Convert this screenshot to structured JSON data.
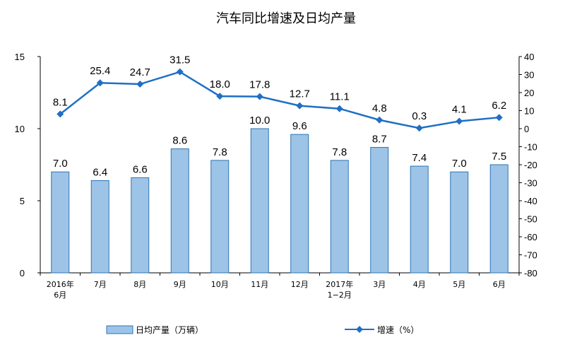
{
  "chart_data": {
    "type": "bar",
    "title": "汽车同比增速及日均产量",
    "categories": [
      [
        "2016年",
        "6月"
      ],
      [
        "7月"
      ],
      [
        "8月"
      ],
      [
        "9月"
      ],
      [
        "10月"
      ],
      [
        "11月"
      ],
      [
        "12月"
      ],
      [
        "2017年",
        "1−2月"
      ],
      [
        "3月"
      ],
      [
        "4月"
      ],
      [
        "5月"
      ],
      [
        "6月"
      ]
    ],
    "series": [
      {
        "name": "日均产量（万辆）",
        "type": "bar",
        "axis": "left",
        "color": "#9DC3E6",
        "values": [
          7.0,
          6.4,
          6.6,
          8.6,
          7.8,
          10.0,
          9.6,
          7.8,
          8.7,
          7.4,
          7.0,
          7.5
        ],
        "labels": [
          "7.0",
          "6.4",
          "6.6",
          "8.6",
          "7.8",
          "10.0",
          "9.6",
          "7.8",
          "8.7",
          "7.4",
          "7.0",
          "7.5"
        ]
      },
      {
        "name": "增速（%）",
        "type": "line",
        "axis": "right",
        "color": "#1F6FC5",
        "values": [
          8.1,
          25.4,
          24.7,
          31.5,
          18.0,
          17.8,
          12.7,
          11.1,
          4.8,
          0.3,
          4.1,
          6.2
        ],
        "labels": [
          "8.1",
          "25.4",
          "24.7",
          "31.5",
          "18.0",
          "17.8",
          "12.7",
          "11.1",
          "4.8",
          "0.3",
          "4.1",
          "6.2"
        ]
      }
    ],
    "y_left": {
      "min": 0,
      "max": 15,
      "ticks": [
        0,
        5,
        10,
        15
      ]
    },
    "y_right": {
      "min": -80,
      "max": 40,
      "ticks": [
        40,
        30,
        20,
        10,
        0,
        -10,
        -20,
        -30,
        -40,
        -50,
        -60,
        -70,
        -80
      ]
    },
    "grid": false,
    "legend_position": "bottom"
  }
}
